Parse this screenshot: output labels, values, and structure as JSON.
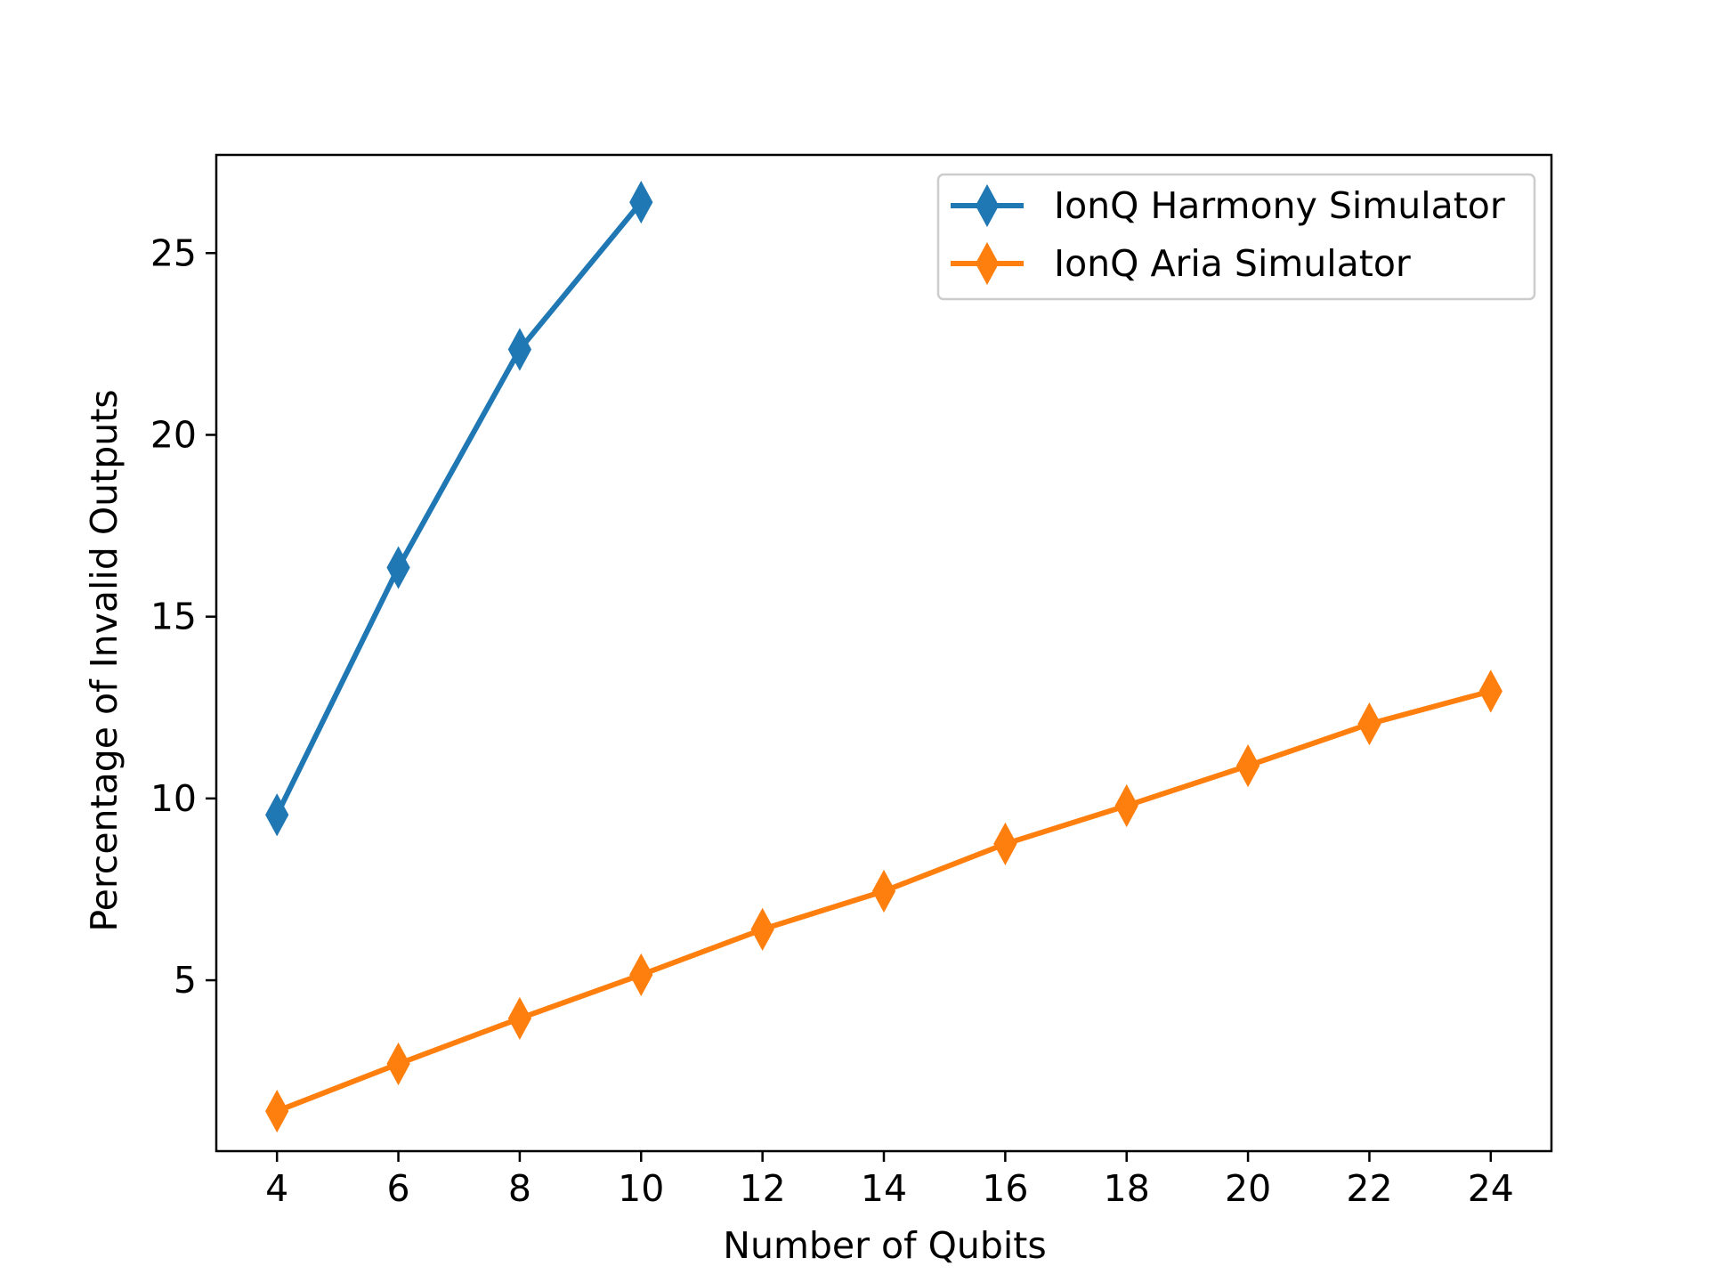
{
  "chart_data": {
    "type": "line",
    "title": "",
    "xlabel": "Number of Qubits",
    "ylabel": "Percentage of Invalid Outputs",
    "xlim": [
      3,
      25
    ],
    "ylim": [
      0.3,
      27.7
    ],
    "xticks": [
      4,
      6,
      8,
      10,
      12,
      14,
      16,
      18,
      20,
      22,
      24
    ],
    "yticks": [
      5,
      10,
      15,
      20,
      25
    ],
    "grid": false,
    "legend_position": "upper right",
    "marker": "thin-diamond",
    "series": [
      {
        "name": "IonQ Harmony Simulator",
        "color": "#1f77b4",
        "x": [
          4,
          6,
          8,
          10
        ],
        "y": [
          9.55,
          16.35,
          22.35,
          26.4
        ]
      },
      {
        "name": "IonQ Aria Simulator",
        "color": "#ff7f0e",
        "x": [
          4,
          6,
          8,
          10,
          12,
          14,
          16,
          18,
          20,
          22,
          24
        ],
        "y": [
          1.4,
          2.7,
          3.95,
          5.15,
          6.4,
          7.45,
          8.75,
          9.8,
          10.9,
          12.05,
          12.95
        ]
      }
    ]
  }
}
